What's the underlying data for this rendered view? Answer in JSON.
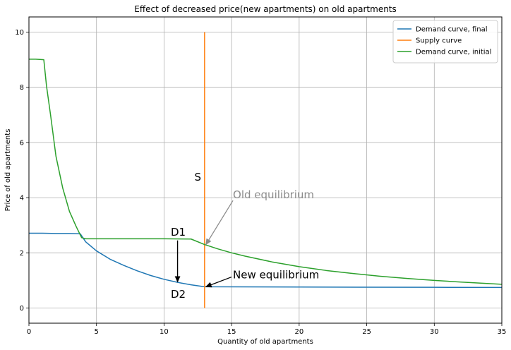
{
  "chart_data": {
    "type": "line",
    "title": "Effect of decreased price(new apartments) on old apartments",
    "xlabel": "Quantity of old apartments",
    "ylabel": "Price of old apartments",
    "xlim": [
      0,
      35
    ],
    "ylim": [
      -0.55,
      10.55
    ],
    "xticks": [
      0,
      5,
      10,
      15,
      20,
      25,
      30,
      35
    ],
    "yticks": [
      0,
      2,
      4,
      6,
      8,
      10
    ],
    "grid": true,
    "legend_position": "top-right",
    "series": [
      {
        "name": "Demand curve, final",
        "color": "#1f77b4",
        "points": [
          [
            0,
            2.71
          ],
          [
            1,
            2.71
          ],
          [
            2,
            2.7
          ],
          [
            3,
            2.7
          ],
          [
            3.8,
            2.69
          ],
          [
            4.2,
            2.4
          ],
          [
            5,
            2.07
          ],
          [
            6,
            1.77
          ],
          [
            7,
            1.55
          ],
          [
            8,
            1.35
          ],
          [
            9,
            1.18
          ],
          [
            10,
            1.04
          ],
          [
            11,
            0.93
          ],
          [
            12,
            0.84
          ],
          [
            13,
            0.77
          ],
          [
            20,
            0.76
          ],
          [
            25,
            0.755
          ],
          [
            30,
            0.75
          ],
          [
            35,
            0.745
          ]
        ]
      },
      {
        "name": "Supply curve",
        "color": "#ff7f0e",
        "points": [
          [
            13,
            0
          ],
          [
            13,
            10
          ]
        ]
      },
      {
        "name": "Demand curve, initial",
        "color": "#2ca02c",
        "points": [
          [
            0,
            9.02
          ],
          [
            0.5,
            9.02
          ],
          [
            1.1,
            9.0
          ],
          [
            1.3,
            8.05
          ],
          [
            1.6,
            7.0
          ],
          [
            2,
            5.5
          ],
          [
            2.5,
            4.35
          ],
          [
            3,
            3.5
          ],
          [
            3.5,
            2.95
          ],
          [
            3.9,
            2.55
          ],
          [
            4.2,
            2.51
          ],
          [
            6,
            2.51
          ],
          [
            8,
            2.51
          ],
          [
            10,
            2.51
          ],
          [
            12,
            2.5
          ],
          [
            13,
            2.3
          ],
          [
            14,
            2.14
          ],
          [
            15,
            2.0
          ],
          [
            16,
            1.88
          ],
          [
            18,
            1.67
          ],
          [
            20,
            1.5
          ],
          [
            22,
            1.36
          ],
          [
            24,
            1.25
          ],
          [
            26,
            1.15
          ],
          [
            28,
            1.07
          ],
          [
            30,
            1.0
          ],
          [
            32,
            0.94
          ],
          [
            35,
            0.86
          ]
        ]
      }
    ],
    "annotations": [
      {
        "text": "S",
        "x": 12.25,
        "y": 4.75,
        "color": "#000000"
      },
      {
        "text": "D1",
        "x": 10.5,
        "y": 2.75,
        "color": "#000000"
      },
      {
        "text": "D2",
        "x": 10.5,
        "y": 0.5,
        "color": "#000000"
      },
      {
        "text": "Old equilibrium",
        "x": 15.1,
        "y": 4.1,
        "color": "#8c8c8c",
        "arrow_to": [
          13.1,
          2.3
        ]
      },
      {
        "text": "New equilibrium",
        "x": 15.1,
        "y": 1.2,
        "color": "#000000",
        "arrow_to": [
          13.1,
          0.77
        ]
      }
    ],
    "d_shift_arrow": {
      "from": [
        11,
        2.45
      ],
      "to": [
        11,
        0.95
      ]
    }
  }
}
